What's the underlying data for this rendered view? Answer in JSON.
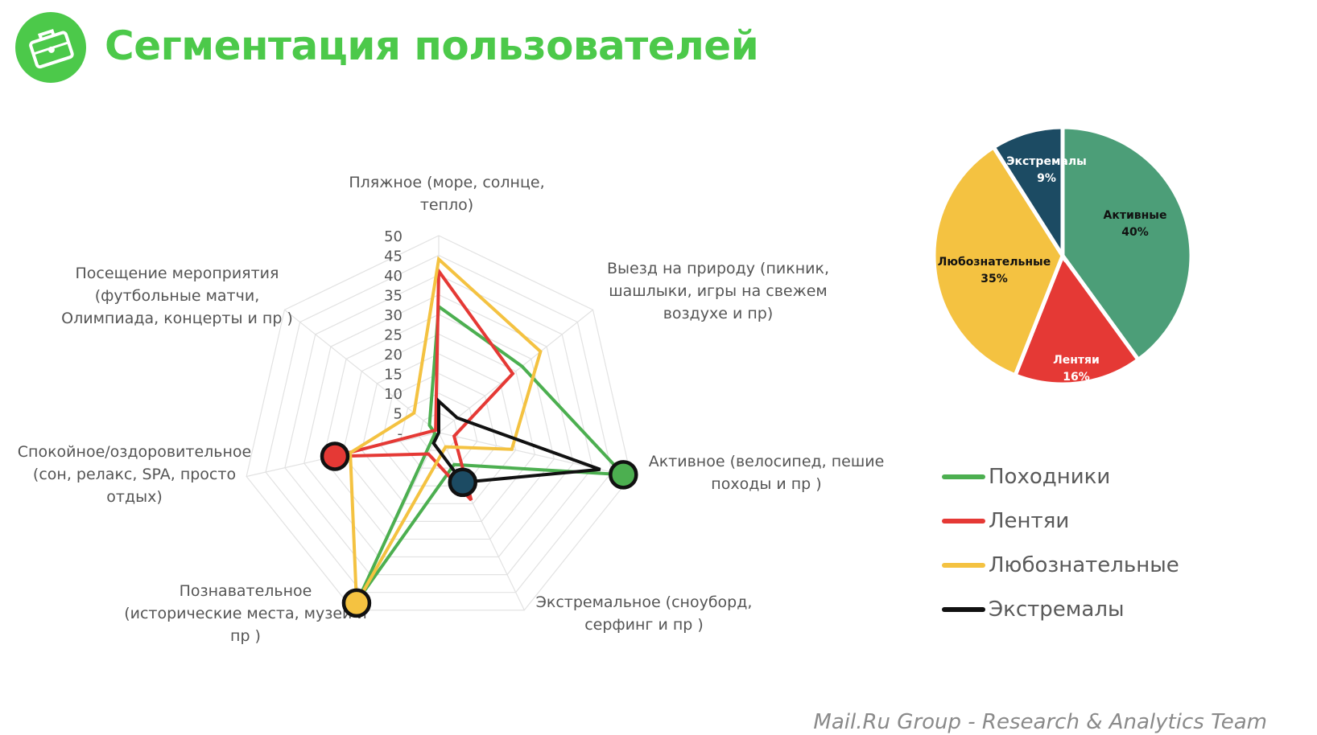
{
  "title": "Сегментация пользователей",
  "footer": "Mail.Ru Group - Research & Analytics Team",
  "logo": {
    "icon": "suitcase-icon",
    "color": "#4cc94a"
  },
  "colors": {
    "title": "#4cc94a",
    "Походники": "#4caf50",
    "Лентяи": "#e53935",
    "Любознательные": "#f4c241",
    "Экстремалы": "#111111",
    "Активные": "#4c9e78",
    "Экстремалы_pie": "#1c4b63",
    "highlight_green": "#4caf50",
    "highlight_red": "#e53935",
    "highlight_yellow": "#f4c241",
    "highlight_navy": "#1c4b63"
  },
  "chart_data": [
    {
      "type": "radar",
      "axes": [
        [
          "Пляжное (море, солнце,",
          "тепло)"
        ],
        [
          "Выезд на природу (пикник,",
          "шашлыки, игры на свежем",
          "воздухе и пр)"
        ],
        [
          "Активное (велосипед, пешие",
          "походы и пр )"
        ],
        [
          "Экстремальное (сноуборд,",
          "серфинг и пр )"
        ],
        [
          "Познавательное",
          "(исторические места, музеи и",
          "пр )"
        ],
        [
          "Спокойное/оздоровительное",
          "(сон, релакс, SPA, просто",
          "отдых)"
        ],
        [
          "Посещение мероприятия",
          "(футбольные матчи,",
          "Олимпиада, концерты и пр )"
        ]
      ],
      "rlim": [
        0,
        50
      ],
      "ticks": [
        "-",
        "5",
        "10",
        "15",
        "20",
        "25",
        "30",
        "35",
        "40",
        "45",
        "50"
      ],
      "series": [
        {
          "name": "Походники",
          "values": [
            32,
            27,
            48,
            9,
            47,
            1,
            3
          ],
          "highlight_axis": 2
        },
        {
          "name": "Лентяи",
          "values": [
            41,
            24,
            4,
            19,
            6,
            27,
            1
          ],
          "highlight_axis": 5
        },
        {
          "name": "Любознательные",
          "values": [
            44,
            33,
            19,
            4,
            48,
            23,
            8
          ],
          "highlight_axis": 4
        },
        {
          "name": "Экстремалы",
          "values": [
            8,
            6,
            42,
            14,
            3,
            0,
            0
          ],
          "highlight_axis": 3
        }
      ],
      "legend": [
        "Походники",
        "Лентяи",
        "Любознательные",
        "Экстремалы"
      ],
      "legend_position": "right"
    },
    {
      "type": "pie",
      "slices": [
        {
          "label": "Активные",
          "pct": "40%",
          "value": 40
        },
        {
          "label": "Лентяи",
          "pct": "16%",
          "value": 16
        },
        {
          "label": "Любознательные",
          "pct": "35%",
          "value": 35
        },
        {
          "label": "Экстремалы",
          "pct": "9%",
          "value": 9
        }
      ]
    }
  ]
}
